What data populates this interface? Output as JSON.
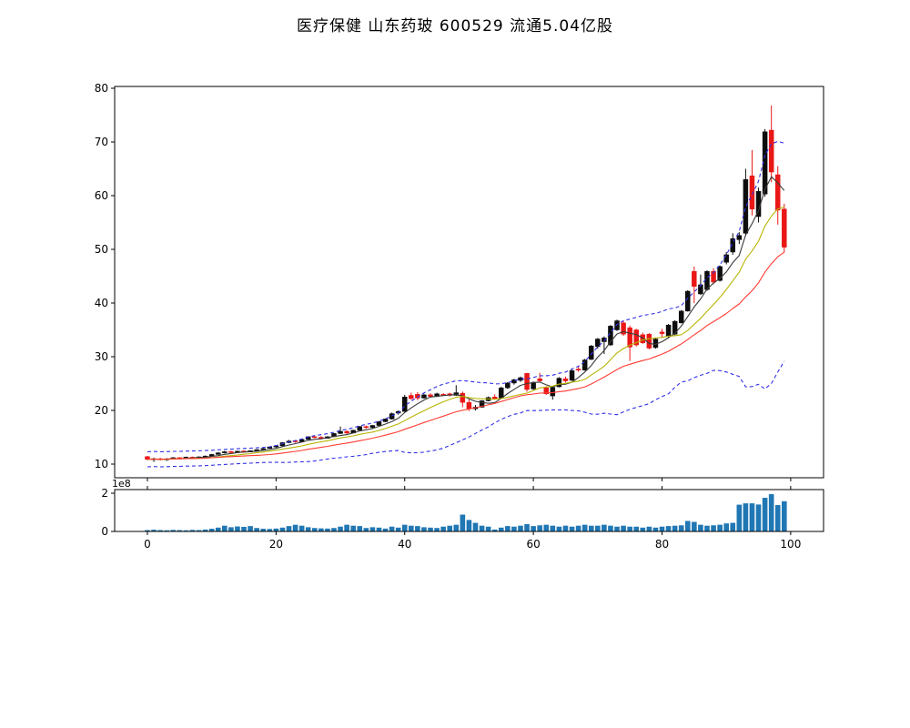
{
  "title": "医疗保健  山东药玻  600529  流通5.04亿股",
  "chart_data": {
    "type": "candlestick",
    "title": "医疗保健  山东药玻  600529  流通5.04亿股",
    "panels": [
      "price",
      "volume"
    ],
    "x_index_range": [
      0,
      99
    ],
    "ohlc": [
      [
        11.4,
        11.5,
        10.7,
        10.9
      ],
      [
        10.9,
        11.2,
        10.4,
        11.0
      ],
      [
        11.0,
        11.2,
        10.7,
        10.8
      ],
      [
        10.8,
        11.1,
        10.6,
        11.0
      ],
      [
        11.0,
        11.3,
        10.9,
        11.2
      ],
      [
        11.2,
        11.3,
        10.9,
        11.0
      ],
      [
        11.0,
        11.4,
        10.95,
        11.3
      ],
      [
        11.3,
        11.4,
        11.1,
        11.15
      ],
      [
        11.15,
        11.45,
        11.1,
        11.35
      ],
      [
        11.35,
        11.6,
        11.25,
        11.5
      ],
      [
        11.5,
        11.9,
        11.45,
        11.8
      ],
      [
        11.8,
        12.2,
        11.75,
        12.1
      ],
      [
        12.1,
        12.45,
        12.0,
        12.3
      ],
      [
        12.35,
        12.5,
        12.0,
        12.15
      ],
      [
        12.15,
        12.5,
        12.1,
        12.4
      ],
      [
        12.45,
        12.55,
        12.15,
        12.25
      ],
      [
        12.25,
        12.6,
        12.2,
        12.5
      ],
      [
        12.5,
        12.8,
        12.4,
        12.7
      ],
      [
        12.7,
        13.0,
        12.6,
        12.9
      ],
      [
        12.95,
        13.3,
        12.85,
        13.2
      ],
      [
        13.2,
        13.5,
        13.0,
        13.4
      ],
      [
        13.4,
        14.1,
        13.35,
        14.0
      ],
      [
        14.0,
        14.5,
        13.9,
        14.3
      ],
      [
        14.35,
        14.5,
        14.0,
        14.15
      ],
      [
        14.15,
        14.7,
        14.1,
        14.6
      ],
      [
        14.6,
        15.2,
        14.55,
        15.1
      ],
      [
        15.1,
        15.3,
        14.8,
        14.95
      ],
      [
        15.0,
        15.2,
        14.6,
        14.8
      ],
      [
        14.8,
        15.2,
        14.75,
        15.1
      ],
      [
        15.1,
        15.8,
        15.05,
        15.7
      ],
      [
        15.7,
        17.0,
        15.6,
        16.1
      ],
      [
        16.1,
        16.3,
        15.6,
        15.8
      ],
      [
        15.8,
        16.4,
        15.75,
        16.3
      ],
      [
        16.3,
        17.1,
        16.25,
        17.0
      ],
      [
        17.0,
        17.2,
        16.6,
        16.8
      ],
      [
        16.8,
        17.3,
        16.7,
        17.2
      ],
      [
        17.2,
        18.0,
        17.1,
        17.9
      ],
      [
        17.9,
        18.5,
        17.8,
        18.4
      ],
      [
        18.4,
        19.6,
        18.3,
        19.4
      ],
      [
        19.5,
        20.0,
        19.2,
        19.8
      ],
      [
        19.8,
        22.9,
        19.7,
        22.5
      ],
      [
        22.8,
        23.3,
        22.0,
        22.2
      ],
      [
        23.0,
        23.4,
        21.9,
        22.3
      ],
      [
        22.3,
        23.1,
        22.2,
        22.9
      ],
      [
        22.9,
        23.2,
        22.4,
        22.6
      ],
      [
        22.6,
        23.3,
        22.5,
        23.1
      ],
      [
        23.0,
        23.2,
        22.7,
        22.9
      ],
      [
        23.1,
        23.3,
        22.6,
        22.8
      ],
      [
        22.8,
        24.7,
        22.7,
        23.3
      ],
      [
        23.2,
        23.5,
        20.6,
        21.5
      ],
      [
        21.5,
        22.0,
        19.9,
        20.3
      ],
      [
        20.3,
        21.0,
        20.0,
        20.6
      ],
      [
        20.6,
        21.9,
        20.5,
        21.8
      ],
      [
        21.8,
        22.6,
        21.7,
        22.4
      ],
      [
        22.5,
        23.0,
        22.0,
        22.2
      ],
      [
        22.3,
        24.4,
        22.2,
        24.2
      ],
      [
        24.2,
        25.3,
        24.0,
        25.1
      ],
      [
        25.1,
        25.9,
        24.8,
        25.7
      ],
      [
        25.6,
        26.3,
        25.3,
        26.1
      ],
      [
        26.9,
        27.0,
        23.5,
        23.9
      ],
      [
        24.0,
        25.4,
        23.8,
        25.2
      ],
      [
        25.9,
        27.0,
        25.2,
        25.5
      ],
      [
        24.2,
        24.5,
        22.9,
        23.1
      ],
      [
        22.7,
        24.5,
        22.0,
        24.3
      ],
      [
        24.4,
        26.2,
        24.3,
        26.0
      ],
      [
        25.9,
        26.3,
        25.2,
        25.5
      ],
      [
        25.6,
        27.6,
        25.5,
        27.4
      ],
      [
        27.7,
        28.2,
        27.2,
        27.5
      ],
      [
        27.5,
        29.6,
        27.4,
        29.4
      ],
      [
        29.5,
        32.2,
        29.4,
        32.0
      ],
      [
        31.9,
        33.5,
        31.5,
        33.3
      ],
      [
        32.8,
        33.8,
        30.5,
        33.5
      ],
      [
        32.2,
        35.9,
        32.0,
        35.7
      ],
      [
        35.0,
        36.9,
        34.8,
        36.7
      ],
      [
        36.3,
        36.8,
        33.9,
        34.2
      ],
      [
        35.4,
        35.8,
        29.2,
        31.8
      ],
      [
        35.0,
        35.2,
        31.9,
        32.2
      ],
      [
        34.1,
        34.5,
        32.4,
        32.6
      ],
      [
        34.2,
        34.4,
        31.4,
        31.6
      ],
      [
        31.7,
        33.5,
        31.5,
        33.3
      ],
      [
        34.6,
        35.2,
        33.6,
        34.3
      ],
      [
        33.8,
        36.1,
        33.6,
        35.9
      ],
      [
        34.2,
        36.8,
        34.0,
        36.6
      ],
      [
        36.3,
        38.7,
        36.2,
        38.5
      ],
      [
        38.5,
        42.4,
        38.4,
        42.2
      ],
      [
        45.9,
        46.8,
        40.0,
        43.1
      ],
      [
        41.7,
        45.3,
        41.5,
        43.4
      ],
      [
        42.5,
        46.1,
        42.3,
        45.9
      ],
      [
        45.9,
        46.5,
        43.5,
        43.9
      ],
      [
        44.2,
        47.0,
        44.0,
        46.8
      ],
      [
        47.6,
        49.5,
        47.2,
        49.0
      ],
      [
        49.5,
        53.0,
        49.0,
        52.0
      ],
      [
        51.8,
        53.2,
        51.0,
        52.6
      ],
      [
        53.0,
        65.0,
        52.5,
        63.0
      ],
      [
        63.7,
        68.5,
        56.3,
        57.5
      ],
      [
        56.1,
        61.5,
        55.0,
        60.8
      ],
      [
        60.3,
        72.4,
        59.8,
        71.9
      ],
      [
        72.2,
        76.8,
        62.5,
        64.4
      ],
      [
        63.9,
        65.5,
        54.6,
        57.3
      ],
      [
        57.5,
        58.5,
        49.4,
        50.4
      ]
    ],
    "volume_1e8": [
      0.07,
      0.09,
      0.07,
      0.06,
      0.08,
      0.07,
      0.06,
      0.08,
      0.07,
      0.1,
      0.14,
      0.2,
      0.3,
      0.22,
      0.26,
      0.24,
      0.28,
      0.18,
      0.14,
      0.13,
      0.15,
      0.2,
      0.28,
      0.35,
      0.3,
      0.22,
      0.18,
      0.16,
      0.15,
      0.18,
      0.25,
      0.35,
      0.3,
      0.28,
      0.18,
      0.22,
      0.2,
      0.15,
      0.25,
      0.2,
      0.35,
      0.3,
      0.28,
      0.22,
      0.2,
      0.18,
      0.25,
      0.3,
      0.35,
      0.88,
      0.6,
      0.45,
      0.3,
      0.25,
      0.1,
      0.2,
      0.28,
      0.25,
      0.3,
      0.38,
      0.28,
      0.32,
      0.35,
      0.3,
      0.25,
      0.3,
      0.25,
      0.3,
      0.35,
      0.3,
      0.3,
      0.35,
      0.3,
      0.25,
      0.3,
      0.25,
      0.25,
      0.2,
      0.25,
      0.2,
      0.25,
      0.28,
      0.3,
      0.32,
      0.55,
      0.5,
      0.35,
      0.3,
      0.32,
      0.35,
      0.42,
      0.45,
      1.4,
      1.47,
      1.47,
      1.41,
      1.76,
      1.95,
      1.38,
      1.58
    ],
    "overlays": [
      {
        "name": "ma5",
        "kind": "sma",
        "window": 5,
        "color": "#3a3a3a",
        "style": "solid"
      },
      {
        "name": "ma10",
        "kind": "sma",
        "window": 10,
        "color": "#b8b400",
        "style": "solid"
      },
      {
        "name": "ma20",
        "kind": "sma",
        "window": 20,
        "color": "#ff3b30",
        "style": "solid"
      },
      {
        "name": "boll-upper",
        "kind": "bollinger_upper",
        "window": 20,
        "k": 2,
        "color": "#3030e8",
        "style": "dashed"
      },
      {
        "name": "boll-lower",
        "kind": "bollinger_lower",
        "window": 20,
        "k": 2,
        "color": "#3030e8",
        "style": "dashed"
      }
    ],
    "axes": {
      "price": {
        "ytick_labels": [
          "10",
          "20",
          "30",
          "40",
          "50",
          "60",
          "70",
          "80"
        ],
        "yticks": [
          10,
          20,
          30,
          40,
          50,
          60,
          70,
          80
        ],
        "ylim": [
          7.46,
          80.34
        ]
      },
      "volume": {
        "ytick_labels": [
          "0",
          "2"
        ],
        "yticks": [
          0,
          2
        ],
        "ylim": [
          0,
          2.19
        ],
        "offset_label": "1e8"
      },
      "xtick_labels": [
        "0",
        "20",
        "40",
        "60",
        "80",
        "100"
      ],
      "xticks": [
        0,
        20,
        40,
        60,
        80,
        100
      ],
      "xlim": [
        -5.09,
        105.11
      ]
    },
    "colors": {
      "up_candle": "#0d0d0d",
      "down_candle": "#ea1717",
      "volume_bar": "#1f77b4",
      "frame": "#000000",
      "background": "#ffffff",
      "title_text": "#000000"
    },
    "legend": "none",
    "grid": false
  }
}
